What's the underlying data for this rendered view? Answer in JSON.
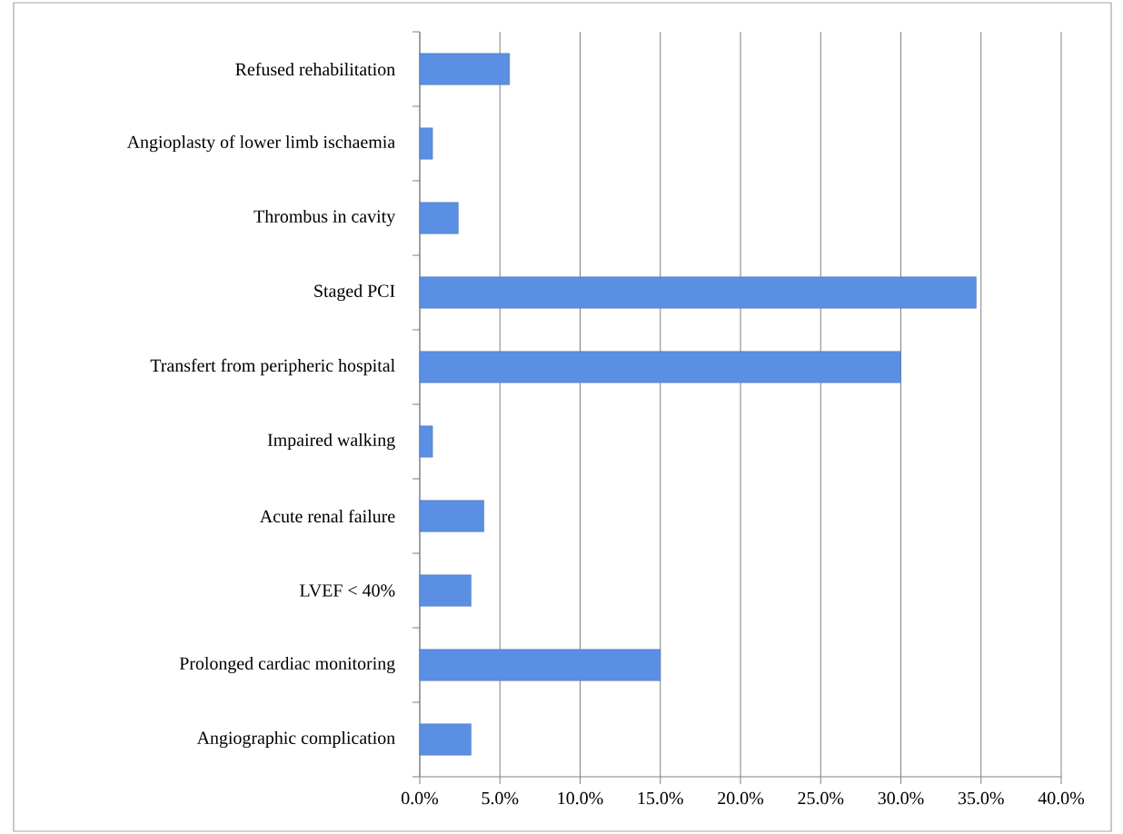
{
  "chart_data": {
    "type": "bar",
    "orientation": "horizontal",
    "categories": [
      "Refused rehabilitation",
      "Angioplasty of lower limb ischaemia",
      "Thrombus in cavity",
      "Staged PCI",
      "Transfert from peripheric hospital",
      "Impaired walking",
      "Acute renal failure",
      "LVEF < 40%",
      "Prolonged cardiac monitoring",
      "Angiographic complication"
    ],
    "values": [
      5.6,
      0.8,
      2.4,
      34.7,
      30.0,
      0.8,
      4.0,
      3.2,
      15.0,
      3.2
    ],
    "color": "#5b8fe4",
    "xlim": [
      0,
      40
    ],
    "xticks": [
      {
        "value": 0,
        "label": "0.0%"
      },
      {
        "value": 5,
        "label": "5.0%"
      },
      {
        "value": 10,
        "label": "10.0%"
      },
      {
        "value": 15,
        "label": "15.0%"
      },
      {
        "value": 20,
        "label": "20.0%"
      },
      {
        "value": 25,
        "label": "25.0%"
      },
      {
        "value": 30,
        "label": "30.0%"
      },
      {
        "value": 35,
        "label": "35.0%"
      },
      {
        "value": 40,
        "label": "40.0%"
      }
    ],
    "grid": "x"
  }
}
